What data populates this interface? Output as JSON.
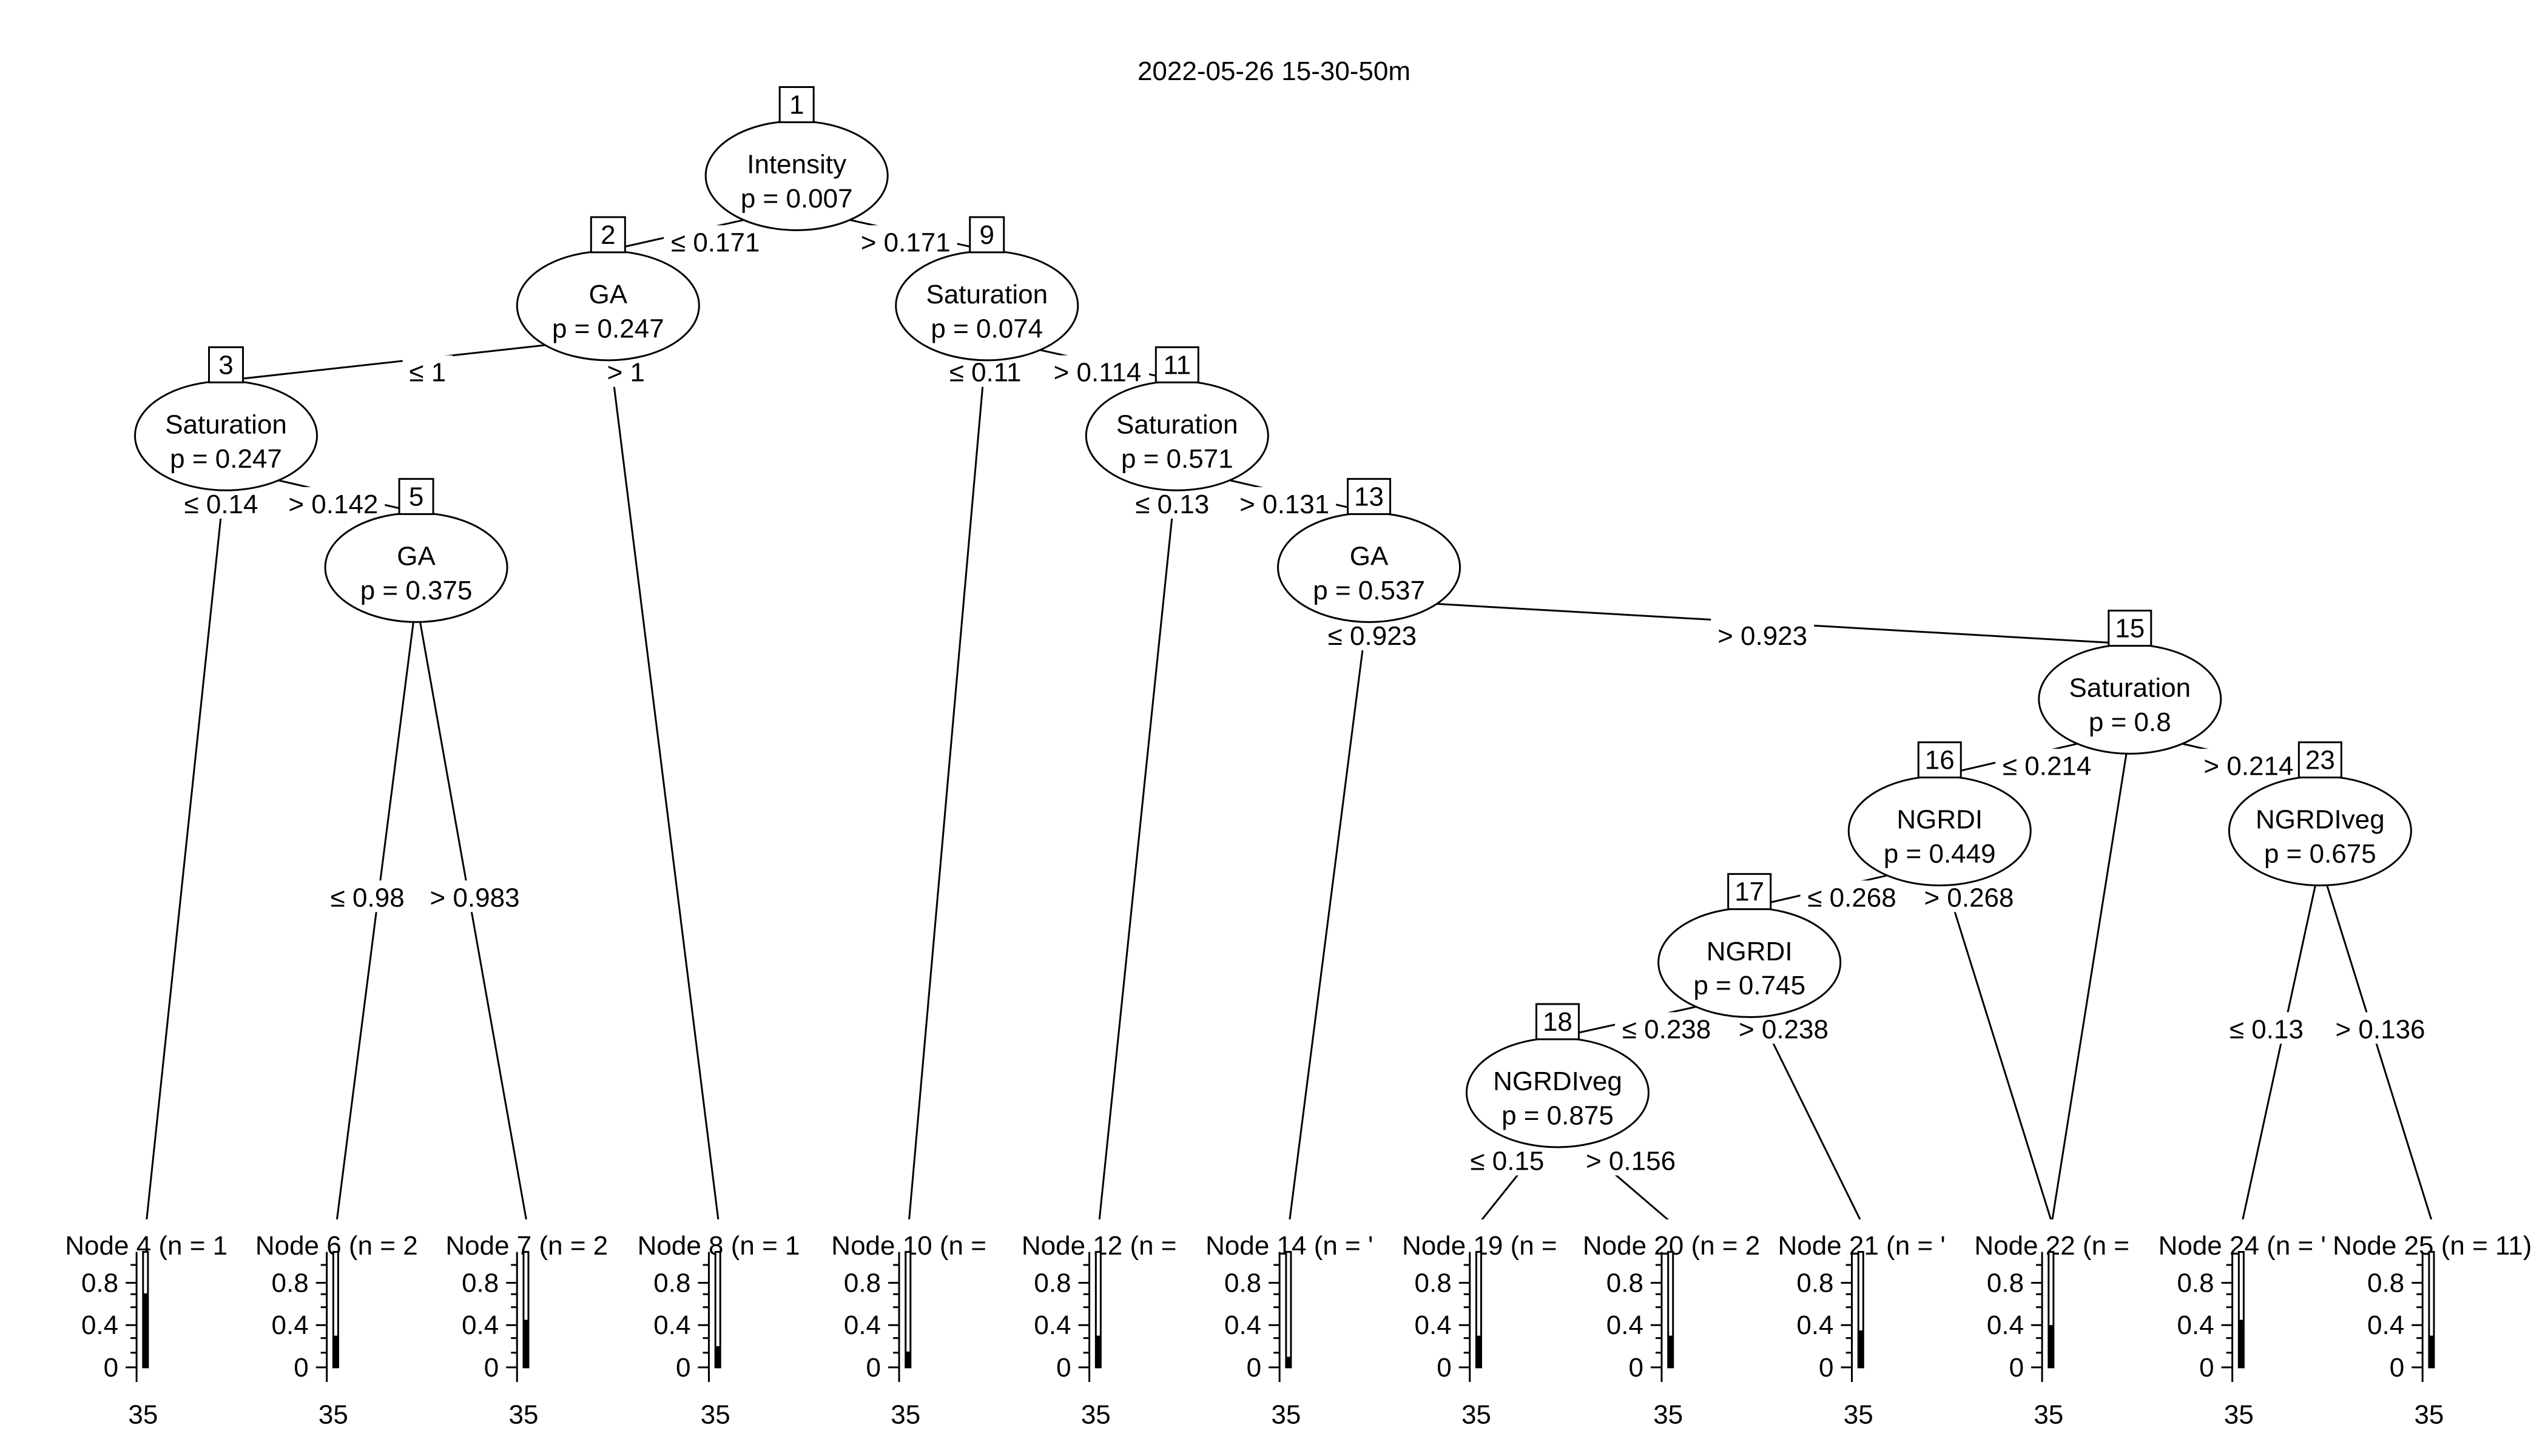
{
  "title": "2022-05-26 15-30-50m",
  "inner_nodes": [
    {
      "id": "1",
      "variable": "Intensity",
      "p": "p = 0.007",
      "left_split": "≤ 0.171",
      "right_split": "> 0.171"
    },
    {
      "id": "2",
      "variable": "GA",
      "p": "p = 0.247",
      "left_split": "≤ 1",
      "right_split": "> 1"
    },
    {
      "id": "3",
      "variable": "Saturation",
      "p": "p = 0.247",
      "left_split": "≤ 0.14",
      "right_split": "> 0.142"
    },
    {
      "id": "5",
      "variable": "GA",
      "p": "p = 0.375",
      "left_split": "≤ 0.98",
      "right_split": "> 0.983"
    },
    {
      "id": "9",
      "variable": "Saturation",
      "p": "p = 0.074",
      "left_split": "≤ 0.11",
      "right_split": "> 0.114"
    },
    {
      "id": "11",
      "variable": "Saturation",
      "p": "p = 0.571",
      "left_split": "≤ 0.13",
      "right_split": "> 0.131"
    },
    {
      "id": "13",
      "variable": "GA",
      "p": "p = 0.537",
      "left_split": "≤ 0.923",
      "right_split": "> 0.923"
    },
    {
      "id": "15",
      "variable": "Saturation",
      "p": "p = 0.8",
      "left_split": "≤ 0.214",
      "right_split": "> 0.214"
    },
    {
      "id": "16",
      "variable": "NGRDI",
      "p": "p = 0.449",
      "left_split": "≤ 0.268",
      "right_split": "> 0.268"
    },
    {
      "id": "17",
      "variable": "NGRDI",
      "p": "p = 0.745",
      "left_split": "≤ 0.238",
      "right_split": "> 0.238"
    },
    {
      "id": "18",
      "variable": "NGRDIveg",
      "p": "p = 0.875",
      "left_split": "≤ 0.15",
      "right_split": "> 0.156"
    },
    {
      "id": "23",
      "variable": "NGRDIveg",
      "p": "p = 0.675",
      "left_split": "≤ 0.13",
      "right_split": "> 0.136"
    }
  ],
  "terminal_nodes": [
    {
      "label": "Node 4 (n = 1",
      "bar": 0.7
    },
    {
      "label": "Node 6 (n = 2",
      "bar": 0.3
    },
    {
      "label": "Node 7 (n = 2",
      "bar": 0.45
    },
    {
      "label": "Node 8 (n = 1",
      "bar": 0.2
    },
    {
      "label": "Node 10 (n =",
      "bar": 0.15
    },
    {
      "label": "Node 12 (n =",
      "bar": 0.3
    },
    {
      "label": "Node 14 (n = '",
      "bar": 0.1
    },
    {
      "label": "Node 19 (n =",
      "bar": 0.3
    },
    {
      "label": "Node 20 (n = 2",
      "bar": 0.3
    },
    {
      "label": "Node 21 (n = '",
      "bar": 0.35
    },
    {
      "label": "Node 22 (n =",
      "bar": 0.4
    },
    {
      "label": "Node 24 (n = '",
      "bar": 0.45
    },
    {
      "label": "Node 25 (n = 11)",
      "bar": 0.3
    }
  ],
  "axis": {
    "ticks": [
      "0.8",
      "0.4",
      "0"
    ],
    "x_label": "35"
  }
}
